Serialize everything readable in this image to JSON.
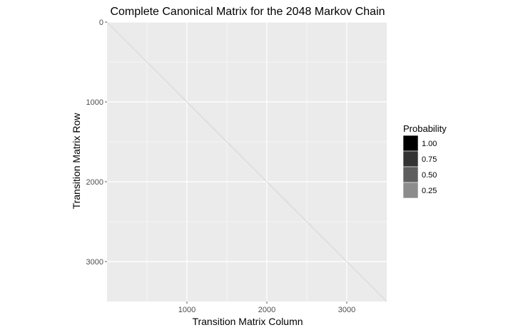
{
  "chart_data": {
    "type": "heatmap",
    "title": "Complete Canonical Matrix for the 2048 Markov Chain",
    "xlabel": "Transition Matrix Column",
    "ylabel": "Transition Matrix Row",
    "xlim": [
      0,
      3500
    ],
    "ylim": [
      0,
      3500
    ],
    "y_reversed": true,
    "x_ticks": [
      1000,
      2000,
      3000
    ],
    "x_tick_labels": [
      "1000",
      "2000",
      "3000"
    ],
    "y_ticks": [
      0,
      1000,
      2000,
      3000
    ],
    "y_tick_labels": [
      "0",
      "1000",
      "2000",
      "3000"
    ],
    "grid": true,
    "panel_background": "#ebebeb",
    "grid_color": "#ffffff",
    "nonzero_pattern": "diagonal",
    "diagonal": [
      [
        0,
        0
      ],
      [
        3500,
        3500
      ]
    ],
    "diagonal_color": "#d0d0d0",
    "legend": {
      "title": "Probability",
      "position": "right",
      "entries": [
        {
          "label": "1.00",
          "value": 1.0,
          "color": "#000000"
        },
        {
          "label": "0.75",
          "value": 0.75,
          "color": "#333333"
        },
        {
          "label": "0.50",
          "value": 0.5,
          "color": "#5e5e5e"
        },
        {
          "label": "0.25",
          "value": 0.25,
          "color": "#8c8c8c"
        }
      ]
    }
  }
}
